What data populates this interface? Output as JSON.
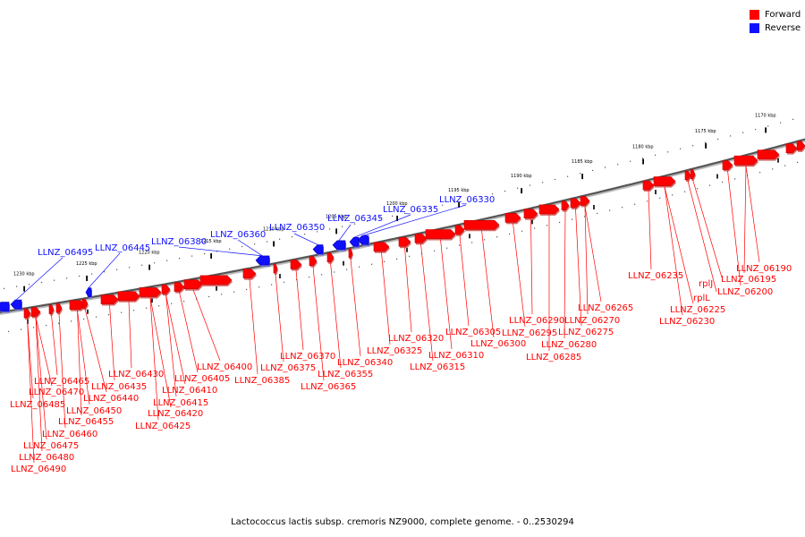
{
  "legend": {
    "forward_label": "Forward",
    "reverse_label": "Reverse",
    "forward_color": "#ff0000",
    "reverse_color": "#1010ff"
  },
  "caption": "Lactococcus lactis subsp. cremoris NZ9000, complete genome. - 0..2530294",
  "scale_unit": "kbp",
  "scale_ticks": [
    1230,
    1225,
    1220,
    1215,
    1210,
    1205,
    1200,
    1195,
    1190,
    1185,
    1180,
    1175,
    1170
  ],
  "reverse_genes": [
    "LLNZ_06495",
    "LLNZ_06445",
    "LLNZ_06380",
    "LLNZ_06360",
    "LLNZ_06350",
    "LLNZ_06345",
    "LLNZ_06335",
    "LLNZ_06330"
  ],
  "forward_genes": [
    "LLNZ_06490",
    "LLNZ_06485",
    "LLNZ_06480",
    "LLNZ_06475",
    "LLNZ_06470",
    "LLNZ_06465",
    "LLNZ_06460",
    "LLNZ_06455",
    "LLNZ_06450",
    "LLNZ_06440",
    "LLNZ_06435",
    "LLNZ_06430",
    "LLNZ_06425",
    "LLNZ_06420",
    "LLNZ_06415",
    "LLNZ_06410",
    "LLNZ_06405",
    "LLNZ_06400",
    "LLNZ_06385",
    "LLNZ_06375",
    "LLNZ_06370",
    "LLNZ_06365",
    "LLNZ_06355",
    "LLNZ_06340",
    "LLNZ_06325",
    "LLNZ_06320",
    "LLNZ_06315",
    "LLNZ_06310",
    "LLNZ_06305",
    "LLNZ_06300",
    "LLNZ_06295",
    "LLNZ_06290",
    "LLNZ_06285",
    "LLNZ_06280",
    "LLNZ_06275",
    "LLNZ_06270",
    "LLNZ_06265",
    "LLNZ_06235",
    "LLNZ_06230",
    "LLNZ_06225",
    "rplL",
    "rplJ",
    "LLNZ_06200",
    "LLNZ_06195",
    "LLNZ_06190"
  ]
}
